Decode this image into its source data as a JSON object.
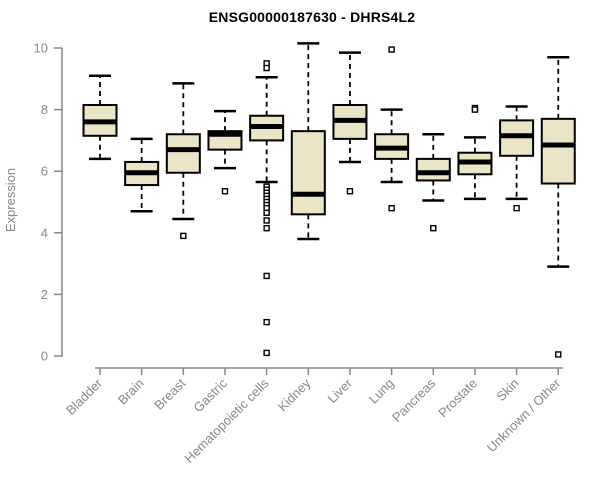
{
  "page": {
    "background": "#ffffff"
  },
  "chart_data": {
    "type": "boxplot",
    "title": "ENSG00000187630 - DHRS4L2",
    "ylabel": "Expression",
    "xlabel": "",
    "ylim": [
      0,
      10
    ],
    "yticks": [
      0,
      2,
      4,
      6,
      8,
      10
    ],
    "grid": false,
    "legend": "none",
    "categories": [
      "Bladder",
      "Brain",
      "Breast",
      "Gastric",
      "Hematopoietic cells",
      "Kidney",
      "Liver",
      "Lung",
      "Pancreas",
      "Prostate",
      "Skin",
      "Unknown / Other"
    ],
    "series": [
      {
        "name": "Bladder",
        "whisker_low": 6.4,
        "q1": 7.15,
        "median": 7.6,
        "q3": 8.15,
        "whisker_high": 9.1,
        "outliers": []
      },
      {
        "name": "Brain",
        "whisker_low": 4.7,
        "q1": 5.55,
        "median": 5.95,
        "q3": 6.3,
        "whisker_high": 7.05,
        "outliers": []
      },
      {
        "name": "Breast",
        "whisker_low": 4.45,
        "q1": 5.95,
        "median": 6.7,
        "q3": 7.2,
        "whisker_high": 8.85,
        "outliers": [
          3.9
        ]
      },
      {
        "name": "Gastric",
        "whisker_low": 6.1,
        "q1": 6.7,
        "median": 7.2,
        "q3": 7.3,
        "whisker_high": 7.95,
        "outliers": [
          5.35
        ]
      },
      {
        "name": "Hematopoietic cells",
        "whisker_low": 5.65,
        "q1": 7.0,
        "median": 7.45,
        "q3": 7.8,
        "whisker_high": 9.05,
        "outliers": [
          9.5,
          9.35,
          5.5,
          5.4,
          5.3,
          5.2,
          5.1,
          5.0,
          4.9,
          4.8,
          4.65,
          4.4,
          4.15,
          2.6,
          1.1,
          0.1
        ]
      },
      {
        "name": "Kidney",
        "whisker_low": 3.8,
        "q1": 4.6,
        "median": 5.25,
        "q3": 7.3,
        "whisker_high": 10.15,
        "outliers": []
      },
      {
        "name": "Liver",
        "whisker_low": 6.3,
        "q1": 7.05,
        "median": 7.65,
        "q3": 8.15,
        "whisker_high": 9.85,
        "outliers": [
          5.35
        ]
      },
      {
        "name": "Lung",
        "whisker_low": 5.65,
        "q1": 6.4,
        "median": 6.75,
        "q3": 7.2,
        "whisker_high": 8.0,
        "outliers": [
          9.95,
          4.8
        ]
      },
      {
        "name": "Pancreas",
        "whisker_low": 5.05,
        "q1": 5.7,
        "median": 5.95,
        "q3": 6.4,
        "whisker_high": 7.2,
        "outliers": [
          4.15
        ]
      },
      {
        "name": "Prostate",
        "whisker_low": 5.1,
        "q1": 5.9,
        "median": 6.3,
        "q3": 6.6,
        "whisker_high": 7.1,
        "outliers": [
          8.05,
          8.0
        ]
      },
      {
        "name": "Skin",
        "whisker_low": 5.1,
        "q1": 6.5,
        "median": 7.15,
        "q3": 7.65,
        "whisker_high": 8.1,
        "outliers": [
          4.8
        ]
      },
      {
        "name": "Unknown / Other",
        "whisker_low": 2.9,
        "q1": 5.6,
        "median": 6.85,
        "q3": 7.7,
        "whisker_high": 9.7,
        "outliers": [
          0.05
        ]
      }
    ],
    "colors": {
      "box_fill": "#EBE5C7",
      "box_stroke": "#000000",
      "median": "#000000",
      "whisker": "#000000",
      "outlier_fill": "#ffffff",
      "axis": "#888888",
      "label_text": "#888888",
      "title_text": "#000000"
    }
  }
}
